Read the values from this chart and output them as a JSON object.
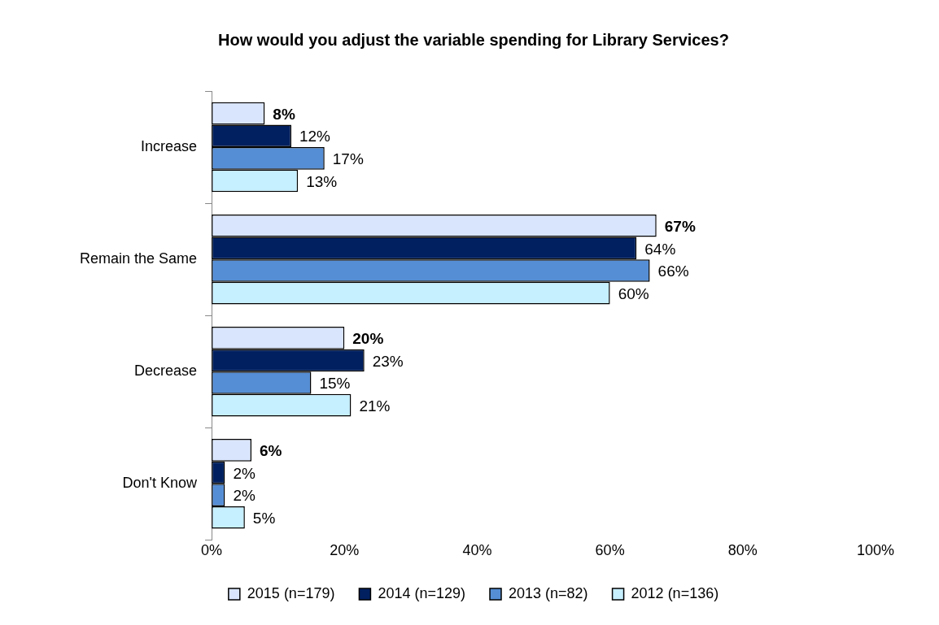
{
  "chart_data": {
    "type": "bar",
    "orientation": "horizontal",
    "title": "How would you adjust the variable spending for Library Services?",
    "categories": [
      "Increase",
      "Remain the Same",
      "Decrease",
      "Don't Know"
    ],
    "series": [
      {
        "name": "2015 (n=179)",
        "color": "#d9e5fc",
        "values": [
          8,
          67,
          20,
          6
        ],
        "value_labels": [
          "8%",
          "67%",
          "20%",
          "6%"
        ]
      },
      {
        "name": "2014 (n=129)",
        "color": "#002060",
        "values": [
          12,
          64,
          23,
          2
        ],
        "value_labels": [
          "12%",
          "64%",
          "23%",
          "2%"
        ]
      },
      {
        "name": "2013 (n=82)",
        "color": "#558ed5",
        "values": [
          17,
          66,
          15,
          2
        ],
        "value_labels": [
          "17%",
          "66%",
          "15%",
          "2%"
        ]
      },
      {
        "name": "2012 (n=136)",
        "color": "#c6efff",
        "values": [
          13,
          60,
          21,
          5
        ],
        "value_labels": [
          "13%",
          "60%",
          "21%",
          "5%"
        ]
      }
    ],
    "xlim": [
      0,
      100
    ],
    "xticks": [
      {
        "value": 0,
        "label": "0%"
      },
      {
        "value": 20,
        "label": "20%"
      },
      {
        "value": 40,
        "label": "40%"
      },
      {
        "value": 60,
        "label": "60%"
      },
      {
        "value": 80,
        "label": "80%"
      },
      {
        "value": 100,
        "label": "100%"
      }
    ],
    "grid": false,
    "legend": "bottom"
  }
}
